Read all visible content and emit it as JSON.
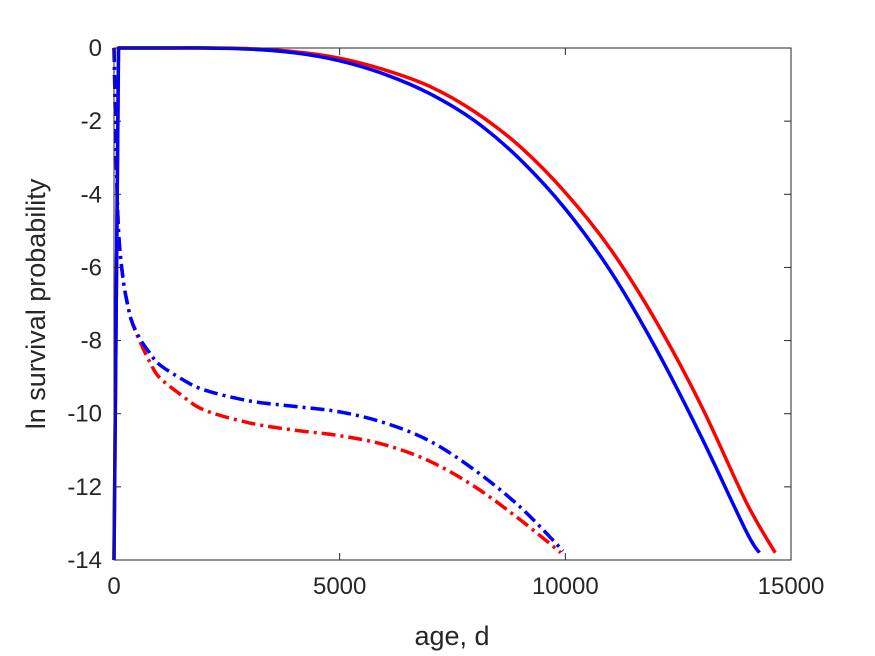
{
  "chart_data": {
    "type": "line",
    "xlabel": "age, d",
    "ylabel": "ln survival probability",
    "xlim": [
      0,
      15000
    ],
    "ylim": [
      -14,
      0
    ],
    "xticks": [
      0,
      5000,
      10000,
      15000
    ],
    "yticks": [
      0,
      -2,
      -4,
      -6,
      -8,
      -10,
      -12,
      -14
    ],
    "grid": false,
    "legend": "none",
    "box": true,
    "series": [
      {
        "color": "#ff0000",
        "style": "solid",
        "x": [
          0,
          100,
          1000,
          2000,
          3000,
          4000,
          5000,
          6000,
          7000,
          8000,
          9000,
          10000,
          11000,
          12000,
          13000,
          14000,
          14650
        ],
        "y": [
          -14,
          0,
          0,
          0,
          -0.02,
          -0.1,
          -0.28,
          -0.6,
          -1.05,
          -1.75,
          -2.7,
          -3.95,
          -5.5,
          -7.45,
          -9.75,
          -12.4,
          -13.8
        ]
      },
      {
        "color": "#0000ff",
        "style": "solid",
        "x": [
          0,
          100,
          1000,
          2000,
          3000,
          4000,
          5000,
          6000,
          7000,
          8000,
          9000,
          10000,
          11000,
          12000,
          13000,
          14000,
          14300
        ],
        "y": [
          -14,
          0,
          0,
          0,
          -0.03,
          -0.13,
          -0.35,
          -0.72,
          -1.25,
          -2.0,
          -3.05,
          -4.4,
          -6.1,
          -8.2,
          -10.6,
          -13.2,
          -13.8
        ]
      },
      {
        "color": "#ff0000",
        "style": "dashdot",
        "x": [
          0,
          50,
          100,
          200,
          300,
          400,
          600,
          800,
          1000,
          1500,
          2000,
          3000,
          4000,
          5000,
          6000,
          7000,
          8000,
          9000,
          9900
        ],
        "y": [
          0,
          -3.0,
          -5.0,
          -6.3,
          -7.0,
          -7.5,
          -8.1,
          -8.6,
          -9.0,
          -9.5,
          -9.9,
          -10.25,
          -10.45,
          -10.6,
          -10.85,
          -11.3,
          -12.0,
          -12.9,
          -13.8
        ]
      },
      {
        "color": "#0000ff",
        "style": "dashdot",
        "x": [
          0,
          50,
          100,
          200,
          300,
          400,
          600,
          800,
          1000,
          1500,
          2000,
          3000,
          4000,
          5000,
          6000,
          7000,
          8000,
          9000,
          9950
        ],
        "y": [
          0,
          -3.0,
          -5.0,
          -6.3,
          -7.0,
          -7.5,
          -8.0,
          -8.35,
          -8.65,
          -9.05,
          -9.35,
          -9.65,
          -9.8,
          -9.95,
          -10.25,
          -10.75,
          -11.55,
          -12.55,
          -13.75
        ]
      }
    ]
  }
}
